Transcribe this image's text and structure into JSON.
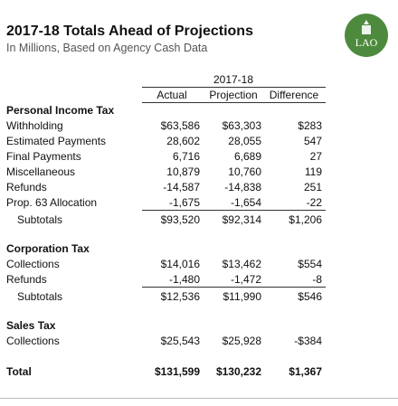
{
  "header": {
    "title": "2017-18 Totals Ahead of Projections",
    "subtitle": "In Millions, Based on Agency Cash Data",
    "logo": "LAO"
  },
  "table": {
    "group_header": "2017-18",
    "columns": [
      "Actual",
      "Projection",
      "Difference"
    ],
    "sections": [
      {
        "heading": "Personal Income Tax",
        "rows": [
          [
            "Withholding",
            "$63,586",
            "$63,303",
            "$283"
          ],
          [
            "Estimated Payments",
            "28,602",
            "28,055",
            "547"
          ],
          [
            "Final Payments",
            "6,716",
            "6,689",
            "27"
          ],
          [
            "Miscellaneous",
            "10,879",
            "10,760",
            "119"
          ],
          [
            "Refunds",
            "-14,587",
            "-14,838",
            "251"
          ],
          [
            "Prop. 63 Allocation",
            "-1,675",
            "-1,654",
            "-22"
          ]
        ],
        "subtotal": [
          "Subtotals",
          "$93,520",
          "$92,314",
          "$1,206"
        ]
      },
      {
        "heading": "Corporation Tax",
        "rows": [
          [
            "Collections",
            "$14,016",
            "$13,462",
            "$554"
          ],
          [
            "Refunds",
            "-1,480",
            "-1,472",
            "-8"
          ]
        ],
        "subtotal": [
          "Subtotals",
          "$12,536",
          "$11,990",
          "$546"
        ]
      },
      {
        "heading": "Sales Tax",
        "rows": [
          [
            "Collections",
            "$25,543",
            "$25,928",
            "-$384"
          ]
        ]
      }
    ],
    "total": [
      "Total",
      "$131,599",
      "$130,232",
      "$1,367"
    ]
  }
}
